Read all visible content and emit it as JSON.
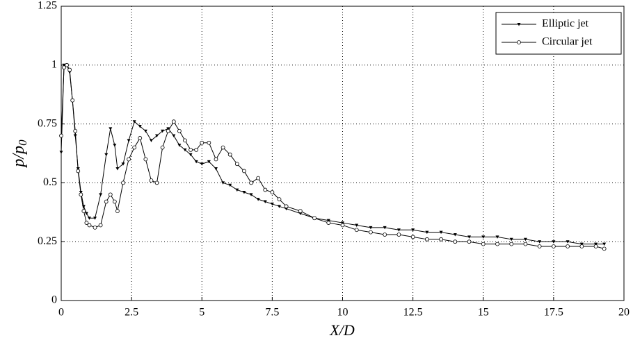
{
  "chart_data": {
    "type": "line",
    "xlabel": "X/D",
    "ylabel": {
      "main": "p/p",
      "sub": "0"
    },
    "x": [
      0,
      0.1,
      0.2,
      0.3,
      0.4,
      0.5,
      0.6,
      0.7,
      0.8,
      0.9,
      1.0,
      1.2,
      1.4,
      1.6,
      1.75,
      1.9,
      2.0,
      2.2,
      2.4,
      2.6,
      2.8,
      3.0,
      3.2,
      3.4,
      3.6,
      3.8,
      4.0,
      4.2,
      4.4,
      4.6,
      4.8,
      5.0,
      5.25,
      5.5,
      5.75,
      6.0,
      6.25,
      6.5,
      6.75,
      7.0,
      7.25,
      7.5,
      7.75,
      8.0,
      8.5,
      9,
      9.5,
      10,
      10.5,
      11,
      11.5,
      12,
      12.5,
      13,
      13.5,
      14,
      14.5,
      15,
      15.5,
      16,
      16.5,
      17,
      17.5,
      18,
      18.5,
      19,
      19.3
    ],
    "series": [
      {
        "name": "Elliptic jet",
        "color": "#000000",
        "marker": "triangle-down",
        "values": [
          0.63,
          1.0,
          1.0,
          0.97,
          0.85,
          0.7,
          0.56,
          0.46,
          0.4,
          0.37,
          0.35,
          0.35,
          0.45,
          0.62,
          0.73,
          0.66,
          0.56,
          0.58,
          0.68,
          0.76,
          0.74,
          0.72,
          0.68,
          0.7,
          0.72,
          0.73,
          0.7,
          0.66,
          0.64,
          0.62,
          0.59,
          0.58,
          0.59,
          0.56,
          0.5,
          0.49,
          0.47,
          0.46,
          0.45,
          0.43,
          0.42,
          0.41,
          0.4,
          0.39,
          0.37,
          0.35,
          0.34,
          0.33,
          0.32,
          0.31,
          0.31,
          0.3,
          0.3,
          0.29,
          0.29,
          0.28,
          0.27,
          0.27,
          0.27,
          0.26,
          0.26,
          0.25,
          0.25,
          0.25,
          0.24,
          0.24,
          0.24
        ]
      },
      {
        "name": "Circular jet",
        "color": "#000000",
        "marker": "circle",
        "values": [
          0.7,
          0.99,
          1.0,
          0.98,
          0.85,
          0.72,
          0.55,
          0.45,
          0.38,
          0.33,
          0.32,
          0.31,
          0.32,
          0.42,
          0.45,
          0.42,
          0.38,
          0.5,
          0.6,
          0.65,
          0.69,
          0.6,
          0.51,
          0.5,
          0.65,
          0.72,
          0.76,
          0.72,
          0.68,
          0.64,
          0.64,
          0.67,
          0.67,
          0.6,
          0.65,
          0.62,
          0.58,
          0.55,
          0.5,
          0.52,
          0.47,
          0.46,
          0.43,
          0.4,
          0.38,
          0.35,
          0.33,
          0.32,
          0.3,
          0.29,
          0.28,
          0.28,
          0.27,
          0.26,
          0.26,
          0.25,
          0.25,
          0.24,
          0.24,
          0.24,
          0.24,
          0.23,
          0.23,
          0.23,
          0.23,
          0.23,
          0.22
        ]
      }
    ],
    "xlim": [
      0,
      20
    ],
    "xticks": [
      0,
      2.5,
      5,
      7.5,
      10,
      12.5,
      15,
      17.5,
      20
    ],
    "ylim": [
      0,
      1.25
    ],
    "yticks": [
      0,
      0.25,
      0.5,
      0.75,
      1,
      1.25
    ],
    "grid": true,
    "legend": "upper right"
  }
}
